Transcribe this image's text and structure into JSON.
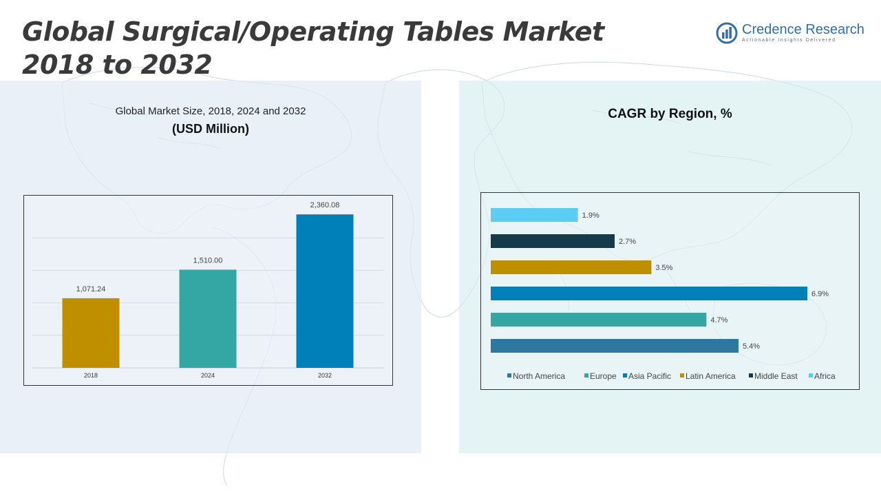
{
  "title_line1": "Global Surgical/Operating Tables Market",
  "title_line2": "2018 to 2032",
  "logo": {
    "name": "Credence Research",
    "tagline": "Actionable Insights Delivered"
  },
  "colors": {
    "gold": "#c08f00",
    "teal": "#34a6a4",
    "blue": "#0080b8",
    "steel": "#2e77a0",
    "dark": "#173a4a",
    "light_blue": "#5bcdf5"
  },
  "chart_data": [
    {
      "type": "bar",
      "title": "Global Market Size, 2018, 2024 and 2032",
      "subtitle": "(USD Million)",
      "categories": [
        "2018",
        "2024",
        "2032"
      ],
      "values": [
        1071.24,
        1510.0,
        2360.08
      ],
      "value_labels": [
        "1,071.24",
        "1,510.00",
        "2,360.08"
      ],
      "bar_colors": [
        "#c08f00",
        "#34a6a4",
        "#0080b8"
      ],
      "ylim": [
        0,
        2500
      ],
      "grid": true,
      "legend": "none"
    },
    {
      "type": "bar",
      "orientation": "horizontal",
      "title": "CAGR by Region, %",
      "categories": [
        "North America",
        "Europe",
        "Asia Pacific",
        "Latin America",
        "Middle East",
        "Africa"
      ],
      "values": [
        5.4,
        4.7,
        6.9,
        3.5,
        2.7,
        1.9
      ],
      "value_labels": [
        "5.4%",
        "4.7%",
        "6.9%",
        "3.5%",
        "2.7%",
        "1.9%"
      ],
      "colors": [
        "#2e77a0",
        "#34a6a4",
        "#0080b8",
        "#c08f00",
        "#173a4a",
        "#5bcdf5"
      ],
      "legend": "bottom",
      "xlim": [
        0,
        6.9
      ]
    }
  ]
}
